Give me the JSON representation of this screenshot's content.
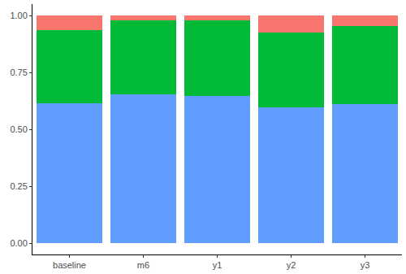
{
  "chart_data": {
    "type": "bar",
    "stacked": true,
    "categories": [
      "baseline",
      "m6",
      "y1",
      "y2",
      "y3"
    ],
    "series": [
      {
        "color": "#619CFF",
        "values": [
          0.615,
          0.655,
          0.645,
          0.595,
          0.61
        ]
      },
      {
        "color": "#00BA38",
        "values": [
          0.32,
          0.325,
          0.335,
          0.33,
          0.345
        ]
      },
      {
        "color": "#F8766D",
        "values": [
          0.065,
          0.02,
          0.02,
          0.075,
          0.045
        ]
      }
    ],
    "ylim": [
      -0.05,
      1.05
    ],
    "yticks": [
      {
        "value": 0,
        "label": "0.00"
      },
      {
        "value": 0.25,
        "label": "0.25"
      },
      {
        "value": 0.5,
        "label": "0.50"
      },
      {
        "value": 0.75,
        "label": "0.75"
      },
      {
        "value": 1,
        "label": "1.00"
      }
    ],
    "grid": false
  }
}
